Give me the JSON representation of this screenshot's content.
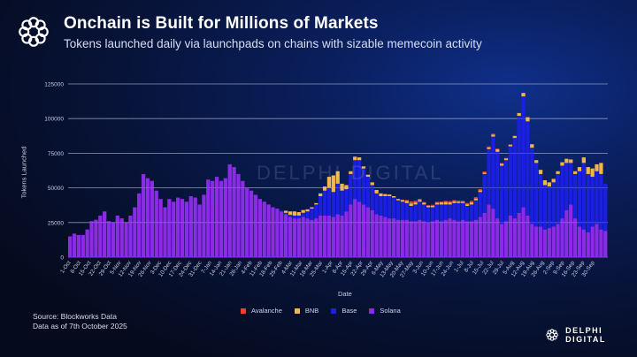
{
  "header": {
    "logo_icon": "delphi-knot-icon",
    "title": "Onchain is Built for Millions of Markets",
    "subtitle": "Tokens launched daily via launchpads on chains with sizable memecoin activity"
  },
  "footer": {
    "source": "Source: Blockworks Data",
    "data_date": "Data as of 7th October 2025",
    "brand": "DELPHI DIGITAL",
    "brand_icon": "delphi-knot-icon"
  },
  "watermark": "DELPHI DIGITAL",
  "chart_data": {
    "type": "bar",
    "stacked": true,
    "title": "",
    "xlabel": "Date",
    "ylabel": "Tokens Launched",
    "ylim": [
      0,
      125000
    ],
    "yticks": [
      0,
      25000,
      50000,
      75000,
      100000,
      125000
    ],
    "grid": true,
    "legend_position": "bottom",
    "bucket": "3-day average, starting 1-Oct-2024",
    "xtick_labels": [
      "1-Oct",
      "8-Oct",
      "15-Oct",
      "22-Oct",
      "29-Oct",
      "5-Nov",
      "12-Nov",
      "19-Nov",
      "26-Nov",
      "3-Dec",
      "10-Dec",
      "17-Dec",
      "24-Dec",
      "31-Dec",
      "7-Jan",
      "14-Jan",
      "21-Jan",
      "28-Jan",
      "4-Feb",
      "11-Feb",
      "18-Feb",
      "25-Feb",
      "4-Mar",
      "11-Mar",
      "18-Mar",
      "25-Mar",
      "1-Apr",
      "8-Apr",
      "15-Apr",
      "22-Apr",
      "29-Apr",
      "6-May",
      "13-May",
      "20-May",
      "27-May",
      "3-Jun",
      "10-Jun",
      "17-Jun",
      "24-Jun",
      "1-Jul",
      "8-Jul",
      "15-Jul",
      "22-Jul",
      "29-Jul",
      "5-Aug",
      "12-Aug",
      "19-Aug",
      "26-Aug",
      "2-Sep",
      "9-Sep",
      "16-Sep",
      "23-Sep",
      "30-Sep"
    ],
    "series": [
      {
        "name": "Avalanche",
        "color": "#e8412c",
        "values": [
          0,
          0,
          0,
          0,
          0,
          0,
          0,
          0,
          0,
          0,
          0,
          0,
          0,
          0,
          0,
          0,
          0,
          0,
          0,
          0,
          0,
          0,
          0,
          0,
          0,
          0,
          0,
          0,
          0,
          0,
          0,
          0,
          0,
          0,
          0,
          0,
          0,
          0,
          0,
          0,
          0,
          0,
          0,
          0,
          0,
          0,
          0,
          0,
          0,
          0,
          0,
          0,
          0,
          0,
          0,
          0,
          0,
          0,
          0,
          0,
          0,
          0,
          0,
          0,
          0,
          0,
          0,
          0,
          0,
          0,
          0,
          0,
          0,
          0,
          0,
          0,
          0,
          300,
          800,
          1500,
          1200,
          800,
          600,
          500,
          800,
          700,
          600,
          800,
          900,
          1000,
          800,
          700,
          900,
          1100,
          1000,
          900,
          800,
          700,
          600,
          500,
          400,
          300,
          200,
          100,
          0,
          0,
          0,
          0,
          0,
          0,
          0,
          0,
          0,
          0,
          0,
          0,
          0,
          0,
          0,
          0,
          0,
          0,
          0
        ]
      },
      {
        "name": "BNB",
        "color": "#f0b64a",
        "values": [
          0,
          0,
          0,
          0,
          0,
          0,
          0,
          0,
          0,
          0,
          0,
          0,
          0,
          0,
          0,
          0,
          0,
          0,
          0,
          0,
          0,
          0,
          0,
          0,
          0,
          0,
          0,
          0,
          0,
          0,
          0,
          0,
          0,
          0,
          0,
          0,
          0,
          0,
          0,
          0,
          0,
          0,
          0,
          0,
          0,
          0,
          0,
          0,
          0,
          0,
          1500,
          2500,
          3000,
          2500,
          2000,
          1500,
          1000,
          1000,
          2000,
          3000,
          8000,
          12000,
          9000,
          5000,
          3000,
          2000,
          2500,
          2000,
          1500,
          1500,
          2000,
          2500,
          2000,
          1500,
          1200,
          1000,
          1000,
          1200,
          1500,
          1800,
          1500,
          1300,
          1200,
          1100,
          1000,
          1200,
          1500,
          1800,
          1500,
          1200,
          1000,
          1000,
          1200,
          1500,
          1300,
          1200,
          1000,
          1200,
          1500,
          1800,
          1500,
          1300,
          1200,
          1500,
          2000,
          2500,
          3000,
          2500,
          2000,
          3000,
          3500,
          3000,
          2500,
          2000,
          2500,
          3000,
          2500,
          2000,
          3000,
          4000,
          5000,
          6000,
          5000,
          8000
        ]
      },
      {
        "name": "Base",
        "color": "#1a1fe0",
        "values": [
          0,
          0,
          0,
          0,
          0,
          0,
          0,
          0,
          0,
          0,
          0,
          0,
          0,
          0,
          0,
          0,
          0,
          0,
          0,
          0,
          0,
          0,
          0,
          0,
          0,
          0,
          0,
          0,
          0,
          0,
          0,
          0,
          0,
          0,
          0,
          0,
          0,
          0,
          0,
          0,
          0,
          0,
          0,
          0,
          0,
          0,
          0,
          0,
          0,
          500,
          1000,
          1500,
          2000,
          2000,
          3000,
          5000,
          8000,
          10000,
          14000,
          18000,
          20000,
          18000,
          22000,
          18000,
          16000,
          22000,
          28000,
          30000,
          26000,
          22000,
          18000,
          15000,
          14000,
          15000,
          16000,
          15000,
          14000,
          13000,
          12000,
          11000,
          12000,
          13000,
          12000,
          11000,
          10000,
          11000,
          12000,
          11000,
          10000,
          12000,
          13000,
          12000,
          11000,
          12000,
          14000,
          18000,
          28000,
          40000,
          52000,
          48000,
          42000,
          44000,
          50000,
          58000,
          70000,
          80000,
          68000,
          55000,
          46000,
          38000,
          32000,
          30000,
          32000,
          36000,
          38000,
          34000,
          30000,
          32000,
          40000,
          48000,
          42000,
          36000,
          38000,
          40000,
          34000,
          38000
        ]
      },
      {
        "name": "Solana",
        "color": "#8a2ce6",
        "values": [
          15000,
          17000,
          16000,
          16000,
          20000,
          26000,
          27000,
          30000,
          33000,
          26000,
          25000,
          30000,
          28000,
          25000,
          30000,
          36000,
          46000,
          60000,
          57000,
          55000,
          48000,
          42000,
          36000,
          42000,
          40000,
          43000,
          42000,
          40000,
          44000,
          43000,
          38000,
          45000,
          56000,
          55000,
          58000,
          55000,
          57000,
          67000,
          65000,
          60000,
          55000,
          50000,
          48000,
          45000,
          42000,
          40000,
          38000,
          36000,
          35000,
          33000,
          31000,
          29000,
          28000,
          28000,
          29000,
          28000,
          27000,
          28000,
          30000,
          30000,
          30000,
          29000,
          31000,
          30000,
          33000,
          38000,
          42000,
          40000,
          38000,
          36000,
          34000,
          31000,
          30000,
          29000,
          28000,
          28000,
          27000,
          27000,
          27000,
          26000,
          26000,
          27000,
          26000,
          25000,
          26000,
          27000,
          26000,
          27000,
          28000,
          27000,
          26000,
          27000,
          26000,
          26000,
          27000,
          29000,
          32000,
          38000,
          35000,
          28000,
          24000,
          26000,
          30000,
          28000,
          32000,
          36000,
          30000,
          24000,
          22000,
          22000,
          20000,
          21000,
          22000,
          24000,
          28000,
          34000,
          38000,
          28000,
          22000,
          20000,
          18000,
          22000,
          24000,
          20000,
          19000
        ]
      }
    ]
  }
}
